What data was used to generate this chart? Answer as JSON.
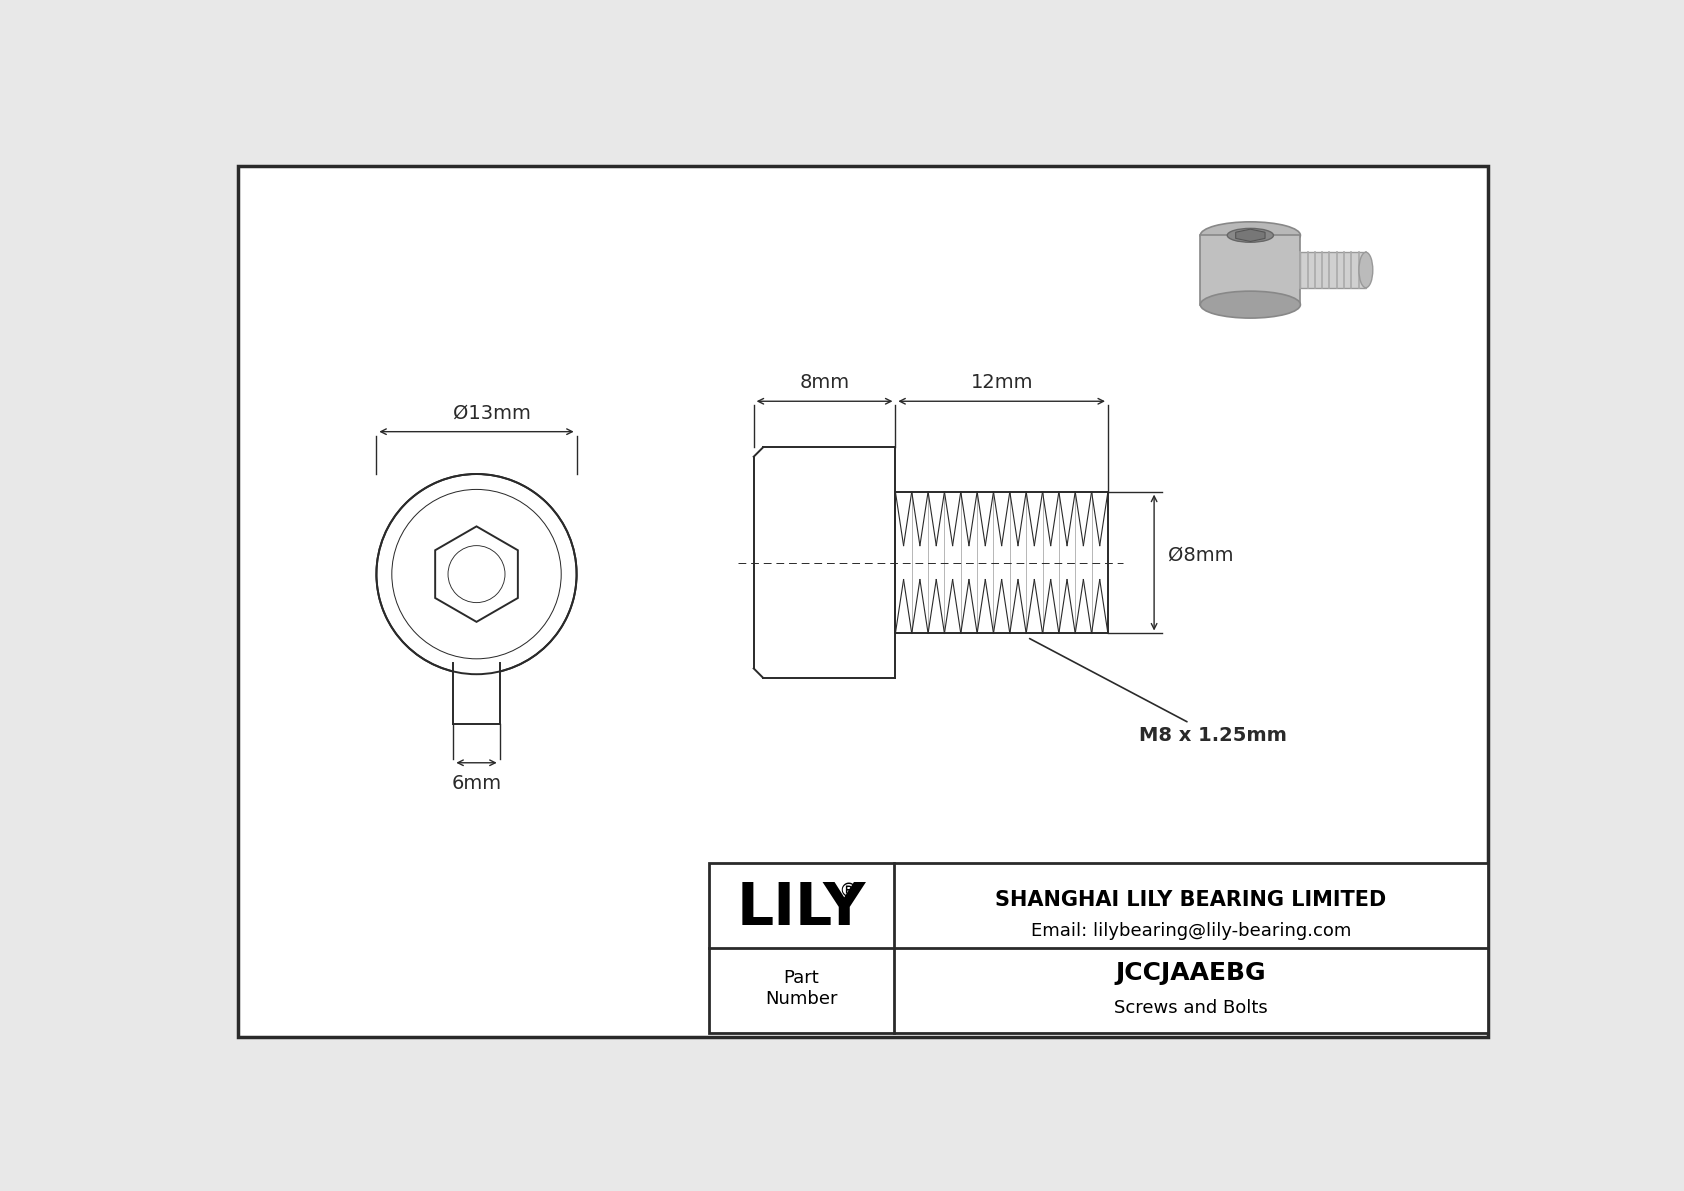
{
  "bg_color": "#e8e8e8",
  "drawing_bg": "#f5f5f5",
  "line_color": "#2a2a2a",
  "title": "JCCJAAEBG",
  "subtitle": "Screws and Bolts",
  "company": "SHANGHAI LILY BEARING LIMITED",
  "email": "Email: lilybearing@lily-bearing.com",
  "part_label": "Part\nNumber",
  "dim_outer": "13mm",
  "dim_hex": "6mm",
  "dim_head_len": "8mm",
  "dim_thread_len": "12mm",
  "dim_thread_dia": "8mm",
  "thread_label": "M8 x 1.25mm",
  "lw": 1.4,
  "lw_thin": 0.8,
  "lw_dim": 1.0
}
